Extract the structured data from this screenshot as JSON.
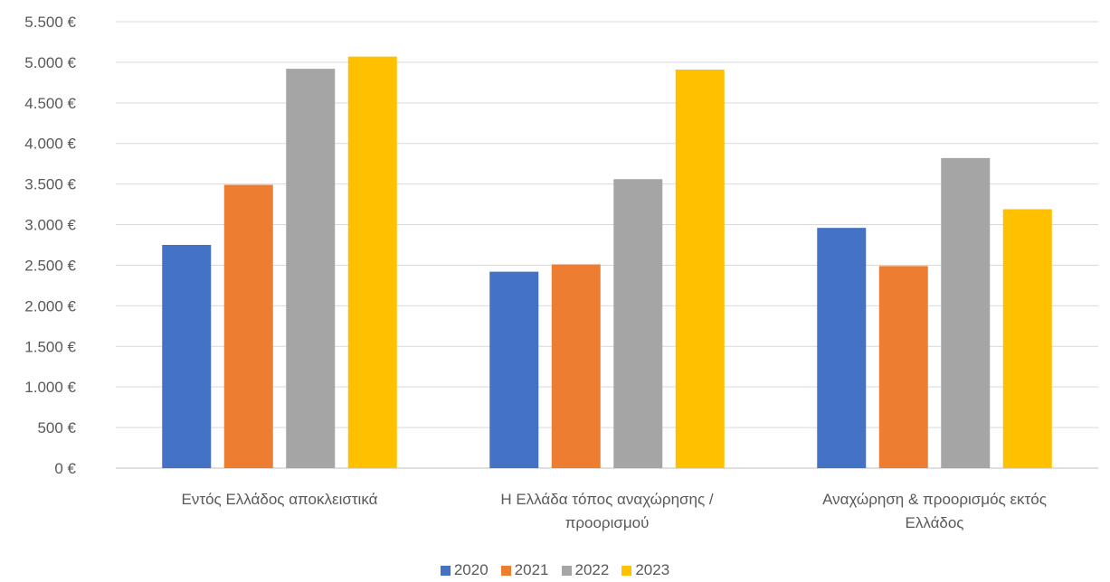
{
  "chart_data": {
    "type": "bar",
    "title": "",
    "xlabel": "",
    "ylabel": "",
    "categories": [
      [
        "Εντός Ελλάδος αποκλειστικά"
      ],
      [
        "Η Ελλάδα τόπος αναχώρησης /",
        "προορισμού"
      ],
      [
        "Αναχώρηση & προορισμός εκτός",
        "Ελλάδος"
      ]
    ],
    "series": [
      {
        "name": "2020",
        "color": "#4472c4",
        "values": [
          2750,
          2420,
          2960
        ]
      },
      {
        "name": "2021",
        "color": "#ed7d31",
        "values": [
          3490,
          2510,
          2490
        ]
      },
      {
        "name": "2022",
        "color": "#a5a5a5",
        "values": [
          4920,
          3560,
          3820
        ]
      },
      {
        "name": "2023",
        "color": "#ffc000",
        "values": [
          5070,
          4910,
          3190
        ]
      }
    ],
    "ylim": [
      0,
      5500
    ],
    "yticks": [
      0,
      500,
      1000,
      1500,
      2000,
      2500,
      3000,
      3500,
      4000,
      4500,
      5000,
      5500
    ],
    "ytick_labels": [
      "0 €",
      "500 €",
      "1.000 €",
      "1.500 €",
      "2.000 €",
      "2.500 €",
      "3.000 €",
      "3.500 €",
      "4.000 €",
      "4.500 €",
      "5.000 €",
      "5.500 €"
    ],
    "grid": true,
    "legend_position": "bottom"
  }
}
